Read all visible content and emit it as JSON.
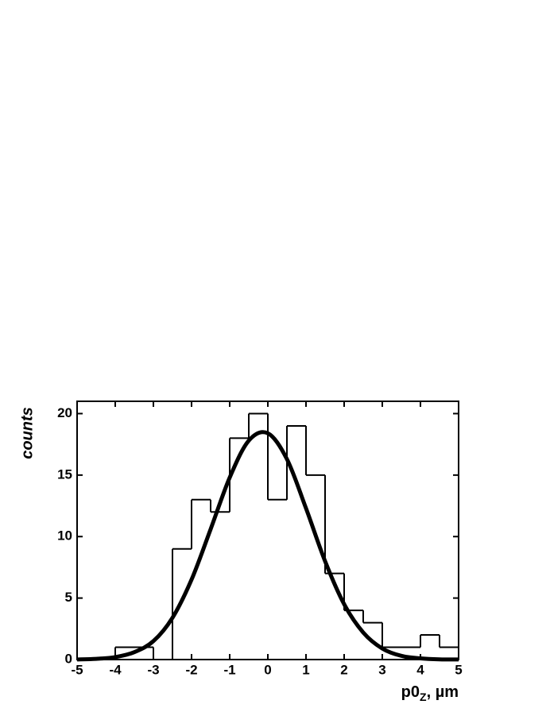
{
  "chart_data": {
    "type": "histogram",
    "bins": [
      -5,
      -4.5,
      -4,
      -3.5,
      -3,
      -2.5,
      -2,
      -1.5,
      -1,
      -0.5,
      0,
      0.5,
      1,
      1.5,
      2,
      2.5,
      3,
      3.5,
      4,
      4.5,
      5
    ],
    "values": [
      0,
      0,
      1,
      1,
      0,
      9,
      13,
      12,
      18,
      20,
      13,
      19,
      15,
      7,
      4,
      3,
      1,
      1,
      2,
      1
    ],
    "color": "#000000",
    "fit": {
      "type": "line",
      "color": "#000000",
      "x": [
        -5,
        -4.5,
        -4,
        -3.5,
        -3,
        -2.5,
        -2,
        -1.5,
        -1,
        -0.5,
        0,
        0.5,
        1,
        1.5,
        2,
        2.5,
        3,
        3.5,
        4,
        4.5,
        5
      ],
      "values": [
        0.01,
        0.06,
        0.2,
        0.6,
        1.5,
        3.4,
        6.5,
        10.6,
        14.8,
        17.8,
        18.4,
        16.3,
        12.3,
        8.0,
        4.5,
        2.2,
        0.9,
        0.3,
        0.1,
        0.02,
        0.01
      ]
    },
    "xlim": [
      -5,
      5
    ],
    "ylim": [
      0,
      21
    ],
    "xticks": [
      -5,
      -4,
      -3,
      -2,
      -1,
      0,
      1,
      2,
      3,
      4,
      5
    ],
    "yticks": [
      0,
      5,
      10,
      15,
      20
    ],
    "ylabel": "counts",
    "xlabel": "p0",
    "xlabel_sub": "Z",
    "xlabel_suffix": ", µm"
  }
}
